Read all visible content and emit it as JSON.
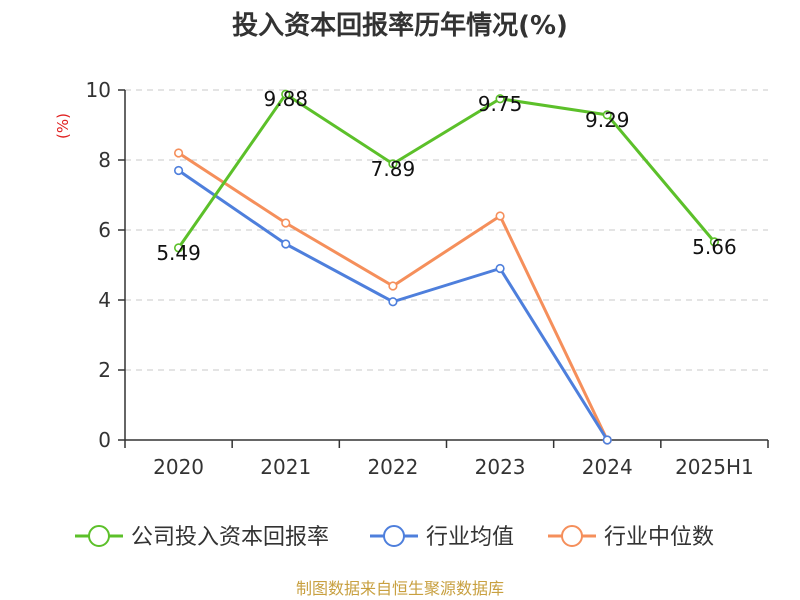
{
  "source_text": "制图数据来自恒生聚源数据库",
  "chart_data": {
    "type": "line",
    "title": "投入资本回报率历年情况(%)",
    "ylabel": "(%)",
    "xlabel": "",
    "categories": [
      "2020",
      "2021",
      "2022",
      "2023",
      "2024",
      "2025H1"
    ],
    "ylim": [
      0,
      10
    ],
    "yticks": [
      "0",
      "2",
      "4",
      "6",
      "8",
      "10"
    ],
    "grid": true,
    "legend_position": "bottom",
    "series": [
      {
        "name": "公司投入资本回报率",
        "color": "#5cc02a",
        "values": [
          5.49,
          9.88,
          7.89,
          9.75,
          9.29,
          5.66
        ],
        "labels": [
          "5.49",
          "9.88",
          "7.89",
          "9.75",
          "9.29",
          "5.66"
        ]
      },
      {
        "name": "行业均值",
        "color": "#4e7fdc",
        "values": [
          7.7,
          5.6,
          3.95,
          4.9,
          0,
          null
        ]
      },
      {
        "name": "行业中位数",
        "color": "#f58f5b",
        "values": [
          8.2,
          6.2,
          4.4,
          6.4,
          0,
          null
        ]
      }
    ]
  }
}
